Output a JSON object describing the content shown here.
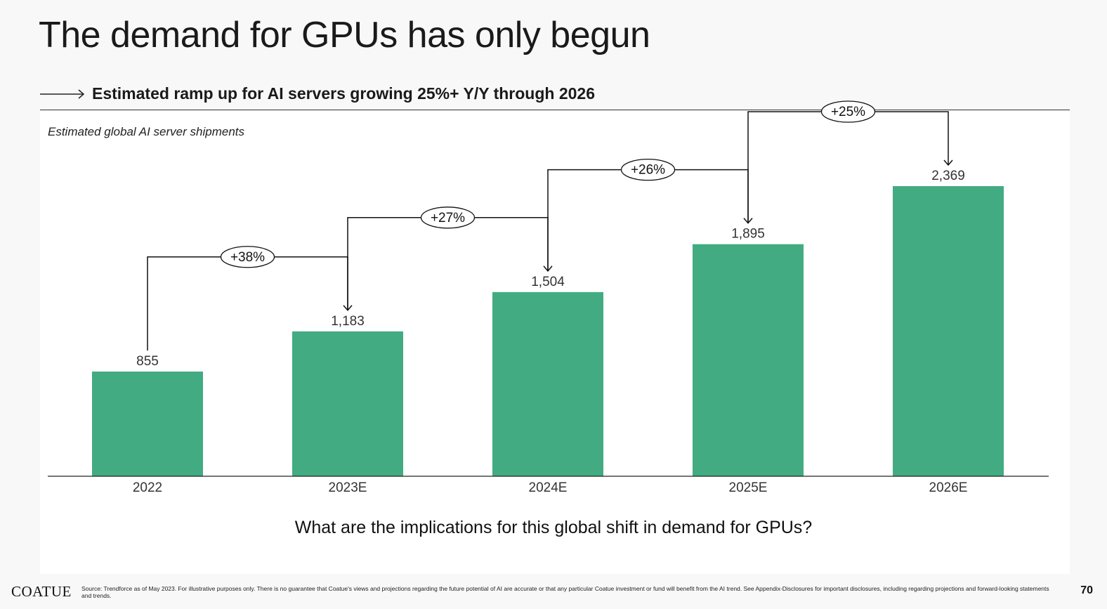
{
  "title": "The demand for GPUs has only begun",
  "subtitle": "Estimated ramp up for AI servers growing 25%+ Y/Y through 2026",
  "chart_caption": "Estimated global AI server shipments",
  "question": "What are the implications for this global shift in demand for GPUs?",
  "footer": {
    "logo": "COATUE",
    "source": "Source: Trendforce as of May 2023. For illustrative purposes only. There is no guarantee that Coatue's views and projections regarding the future potential of AI are accurate or that any particular Coatue investment or fund will benefit from the AI trend. See Appendix-Disclosures for important disclosures, including regarding projections and forward-looking statements and trends.",
    "page_number": "70"
  },
  "colors": {
    "bar": "#43ab82",
    "background": "#f8f8f8",
    "panel": "#ffffff"
  },
  "chart_data": {
    "type": "bar",
    "title": "",
    "xlabel": "",
    "ylabel": "",
    "categories": [
      "2022",
      "2023E",
      "2024E",
      "2025E",
      "2026E"
    ],
    "values": [
      855,
      1183,
      1504,
      1895,
      2369
    ],
    "value_labels": [
      "855",
      "1,183",
      "1,504",
      "1,895",
      "2,369"
    ],
    "growth_annotations": [
      "+38%",
      "+27%",
      "+26%",
      "+25%"
    ],
    "ylim": [
      0,
      2369
    ],
    "grid": false,
    "legend": "none"
  }
}
